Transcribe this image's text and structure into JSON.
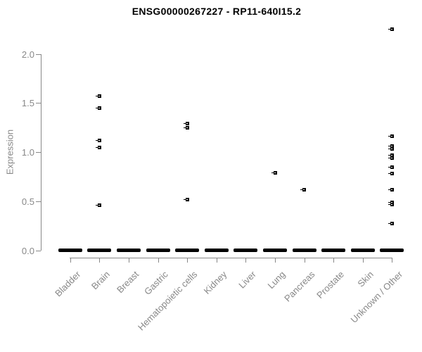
{
  "title": "ENSG00000267227 - RP11-640I15.2",
  "chart_data": {
    "type": "scatter",
    "title": "ENSG00000267227 - RP11-640I15.2",
    "xlabel": "",
    "ylabel": "Expression",
    "ylim": [
      0.0,
      2.3
    ],
    "yticks": [
      "0.0",
      "0.5",
      "1.0",
      "1.5",
      "2.0"
    ],
    "grid": false,
    "legend": "none",
    "marker": "open-square",
    "colors": {
      "marker": "#000000",
      "axis": "#888888",
      "axis_text": "#888888",
      "title_text": "#000000"
    },
    "categories": [
      "Bladder",
      "Brain",
      "Breast",
      "Gastric",
      "Hematopoietic cells",
      "Kidney",
      "Liver",
      "Lung",
      "Pancreas",
      "Prostate",
      "Skin",
      "Unknown / Other"
    ],
    "series": [
      {
        "category": "Bladder",
        "zero_cluster": true,
        "values": []
      },
      {
        "category": "Brain",
        "zero_cluster": true,
        "values": [
          1.57,
          1.45,
          1.12,
          1.05,
          0.46
        ]
      },
      {
        "category": "Breast",
        "zero_cluster": true,
        "values": []
      },
      {
        "category": "Gastric",
        "zero_cluster": true,
        "values": []
      },
      {
        "category": "Hematopoietic cells",
        "zero_cluster": true,
        "values": [
          1.29,
          1.25,
          0.52
        ]
      },
      {
        "category": "Kidney",
        "zero_cluster": true,
        "values": []
      },
      {
        "category": "Liver",
        "zero_cluster": true,
        "values": []
      },
      {
        "category": "Lung",
        "zero_cluster": true,
        "values": [
          0.79
        ]
      },
      {
        "category": "Pancreas",
        "zero_cluster": true,
        "values": [
          0.62
        ]
      },
      {
        "category": "Prostate",
        "zero_cluster": true,
        "values": []
      },
      {
        "category": "Skin",
        "zero_cluster": true,
        "values": []
      },
      {
        "category": "Unknown / Other",
        "zero_cluster": true,
        "values": [
          2.25,
          1.16,
          1.06,
          1.03,
          0.97,
          0.94,
          0.85,
          0.78,
          0.62,
          0.49,
          0.47,
          0.27
        ]
      }
    ]
  }
}
